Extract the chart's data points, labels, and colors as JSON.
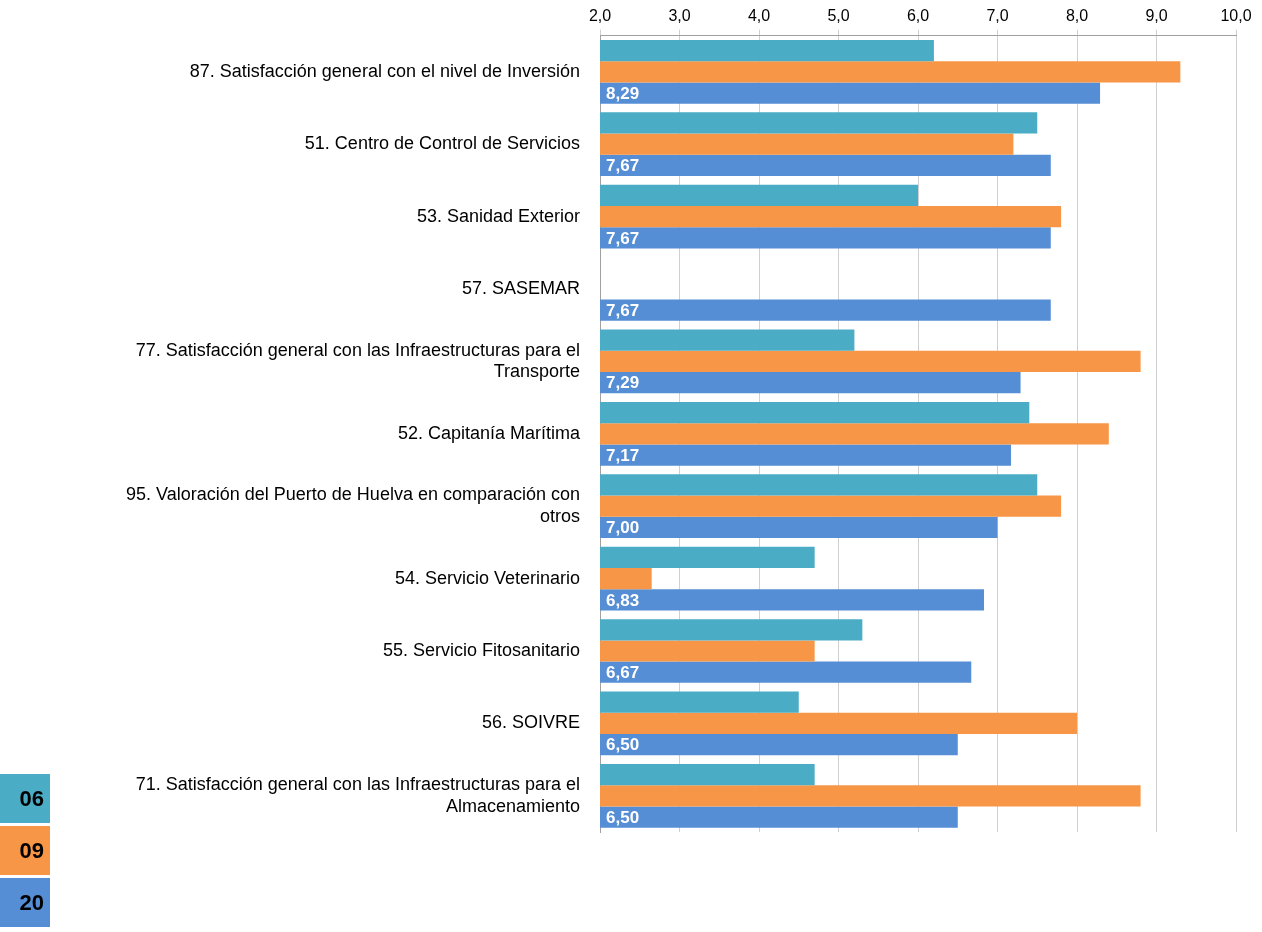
{
  "chart_data": {
    "type": "bar",
    "orientation": "horizontal",
    "categories": [
      "87. Satisfacción general con el nivel de Inversión",
      "51. Centro de Control de Servicios",
      "53. Sanidad Exterior",
      "57. SASEMAR",
      "77. Satisfacción general con las Infraestructuras para el Transporte",
      "52. Capitanía Marítima",
      "95. Valoración del Puerto de Huelva en comparación con otros",
      "54. Servicio Veterinario",
      "55. Servicio Fitosanitario",
      "56. SOIVRE",
      "71. Satisfacción general con las Infraestructuras para el Almacenamiento"
    ],
    "series": [
      {
        "name": "06",
        "color": "#4bacc6",
        "values": [
          6.2,
          7.5,
          6.0,
          null,
          5.2,
          7.4,
          7.5,
          4.7,
          5.3,
          4.5,
          4.7
        ]
      },
      {
        "name": "09",
        "color": "#f79646",
        "values": [
          9.3,
          7.2,
          7.8,
          null,
          8.8,
          8.4,
          7.8,
          2.65,
          4.7,
          8.0,
          8.8
        ]
      },
      {
        "name": "20",
        "color": "#558ed5",
        "values": [
          8.29,
          7.67,
          7.67,
          7.67,
          7.29,
          7.17,
          7.0,
          6.83,
          6.67,
          6.5,
          6.5
        ],
        "value_labels": [
          "8,29",
          "7,67",
          "7,67",
          "7,67",
          "7,29",
          "7,17",
          "7,00",
          "6,83",
          "6,67",
          "6,50",
          "6,50"
        ]
      }
    ],
    "xlim": [
      2,
      10
    ],
    "xticks": [
      {
        "value": 2,
        "label": "2,0"
      },
      {
        "value": 3,
        "label": "3,0"
      },
      {
        "value": 4,
        "label": "4,0"
      },
      {
        "value": 5,
        "label": "5,0"
      },
      {
        "value": 6,
        "label": "6,0"
      },
      {
        "value": 7,
        "label": "7,0"
      },
      {
        "value": 8,
        "label": "8,0"
      },
      {
        "value": 9,
        "label": "9,0"
      },
      {
        "value": 10,
        "label": "10,0"
      }
    ],
    "grid": "x",
    "legend": "bottom left"
  }
}
